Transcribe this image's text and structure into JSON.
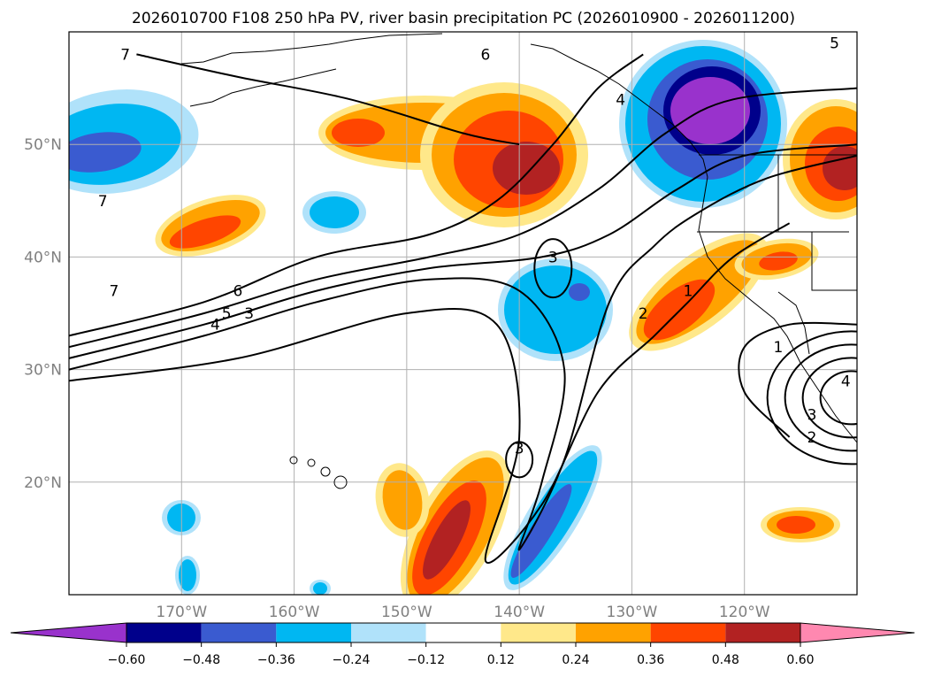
{
  "chart_data": {
    "type": "contour_map",
    "title": "2026010700 F108 250 hPa PV, river basin precipitation PC (2026010900 - 2026011200)",
    "x_axis": {
      "range": [
        -180,
        -110
      ],
      "ticks": [
        -170,
        -160,
        -150,
        -140,
        -130,
        -120
      ],
      "tick_labels": [
        "170°W",
        "160°W",
        "150°W",
        "140°W",
        "130°W",
        "120°W"
      ]
    },
    "y_axis": {
      "range": [
        10,
        60
      ],
      "ticks": [
        20,
        30,
        40,
        50
      ],
      "tick_labels": [
        "20°N",
        "30°N",
        "40°N",
        "50°N"
      ]
    },
    "grid": true,
    "colorbar": {
      "orientation": "horizontal",
      "levels": [
        -0.6,
        -0.48,
        -0.36,
        -0.24,
        -0.12,
        0.12,
        0.24,
        0.36,
        0.48,
        0.6
      ],
      "level_labels": [
        "−0.60",
        "−0.48",
        "−0.36",
        "−0.24",
        "−0.12",
        "0.12",
        "0.24",
        "0.36",
        "0.48",
        "0.60"
      ],
      "colors": [
        "#9932cc",
        "#00008b",
        "#3a5bd0",
        "#00b7f2",
        "#b0e2fa",
        "#ffffff",
        "#ffe88a",
        "#ffa200",
        "#ff4500",
        "#b22222",
        "#ff88b0"
      ],
      "extend": "both"
    },
    "pv_contours": [
      {
        "level": 7,
        "points": [
          [
            -174,
            58
          ],
          [
            -165,
            56
          ],
          [
            -155,
            54
          ],
          [
            -145,
            51
          ],
          [
            -140,
            50
          ]
        ]
      },
      {
        "level": 6,
        "points": [
          [
            -180,
            33
          ],
          [
            -168,
            36
          ],
          [
            -158,
            40
          ],
          [
            -148,
            42
          ],
          [
            -142,
            45
          ],
          [
            -137,
            50
          ],
          [
            -133,
            55
          ],
          [
            -129,
            58
          ]
        ]
      },
      {
        "level": 5,
        "points": [
          [
            -180,
            32
          ],
          [
            -168,
            35
          ],
          [
            -158,
            38
          ],
          [
            -148,
            40
          ],
          [
            -140,
            42
          ],
          [
            -133,
            46
          ],
          [
            -127,
            51
          ],
          [
            -121,
            54
          ],
          [
            -110,
            55
          ]
        ]
      },
      {
        "level": 4,
        "points": [
          [
            -180,
            31
          ],
          [
            -168,
            34
          ],
          [
            -158,
            37
          ],
          [
            -148,
            39
          ],
          [
            -138,
            40
          ],
          [
            -132,
            42
          ],
          [
            -126,
            46
          ],
          [
            -120,
            49
          ],
          [
            -110,
            50
          ]
        ]
      },
      {
        "level": 3,
        "points": [
          [
            -180,
            30
          ],
          [
            -168,
            33
          ],
          [
            -158,
            36
          ],
          [
            -148,
            38
          ],
          [
            -140,
            37
          ],
          [
            -136,
            30
          ],
          [
            -138,
            20
          ],
          [
            -140,
            14
          ],
          [
            -136,
            22
          ],
          [
            -132,
            36
          ],
          [
            -128,
            41
          ],
          [
            -124,
            44
          ],
          [
            -118,
            47
          ],
          [
            -110,
            49
          ]
        ]
      },
      {
        "level": 2,
        "points": [
          [
            -180,
            29
          ],
          [
            -165,
            31
          ],
          [
            -150,
            35
          ],
          [
            -142,
            34
          ],
          [
            -140,
            24
          ],
          [
            -143,
            13
          ],
          [
            -138,
            18
          ],
          [
            -133,
            28
          ],
          [
            -128,
            33
          ],
          [
            -125,
            36
          ],
          [
            -121,
            40
          ],
          [
            -116,
            43
          ]
        ]
      },
      {
        "level": 2,
        "points": [
          [
            -116,
            24
          ],
          [
            -120,
            28
          ],
          [
            -120,
            32
          ],
          [
            -116,
            34
          ],
          [
            -110,
            34
          ]
        ]
      }
    ],
    "contour_labels": [
      {
        "text": "7",
        "lon": -175,
        "lat": 58
      },
      {
        "text": "6",
        "lon": -143,
        "lat": 58
      },
      {
        "text": "5",
        "lon": -112,
        "lat": 59
      },
      {
        "text": "7",
        "lon": -177,
        "lat": 45
      },
      {
        "text": "7",
        "lon": -176,
        "lat": 37
      },
      {
        "text": "6",
        "lon": -165,
        "lat": 37
      },
      {
        "text": "5",
        "lon": -166,
        "lat": 35
      },
      {
        "text": "4",
        "lon": -167,
        "lat": 34
      },
      {
        "text": "3",
        "lon": -164,
        "lat": 35
      },
      {
        "text": "3",
        "lon": -137,
        "lat": 40
      },
      {
        "text": "2",
        "lon": -129,
        "lat": 35
      },
      {
        "text": "1",
        "lon": -125,
        "lat": 37
      },
      {
        "text": "4",
        "lon": -131,
        "lat": 54
      },
      {
        "text": "3",
        "lon": -140,
        "lat": 23
      },
      {
        "text": "1",
        "lon": -117,
        "lat": 32
      },
      {
        "text": "3",
        "lon": -114,
        "lat": 26
      },
      {
        "text": "2",
        "lon": -114,
        "lat": 24
      },
      {
        "text": "4",
        "lon": -111,
        "lat": 29
      }
    ]
  }
}
